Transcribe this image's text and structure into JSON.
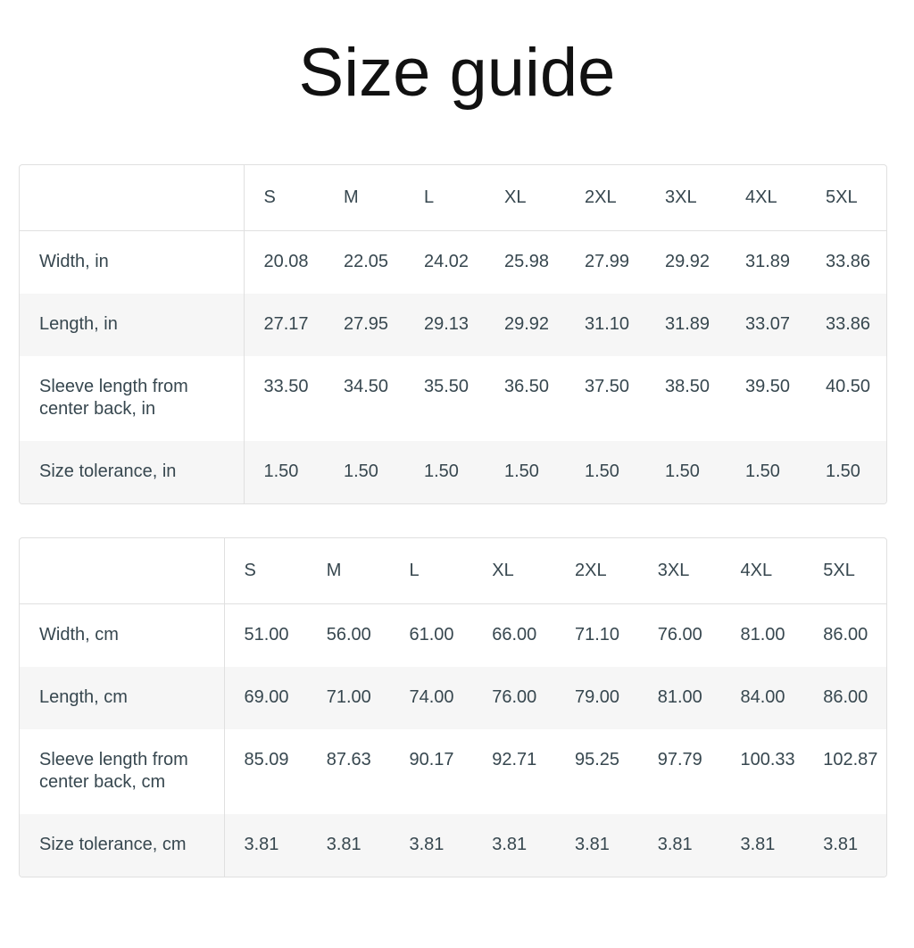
{
  "title": "Size guide",
  "colors": {
    "background": "#ffffff",
    "title": "#111111",
    "text": "#37474F",
    "border": "#e0e0e0",
    "stripe": "#f6f6f6"
  },
  "tables": [
    {
      "columns": [
        "S",
        "M",
        "L",
        "XL",
        "2XL",
        "3XL",
        "4XL",
        "5XL"
      ],
      "rows": [
        {
          "label": "Width, in",
          "values": [
            "20.08",
            "22.05",
            "24.02",
            "25.98",
            "27.99",
            "29.92",
            "31.89",
            "33.86"
          ]
        },
        {
          "label": "Length, in",
          "values": [
            "27.17",
            "27.95",
            "29.13",
            "29.92",
            "31.10",
            "31.89",
            "33.07",
            "33.86"
          ]
        },
        {
          "label": "Sleeve length from center back, in",
          "values": [
            "33.50",
            "34.50",
            "35.50",
            "36.50",
            "37.50",
            "38.50",
            "39.50",
            "40.50"
          ]
        },
        {
          "label": "Size tolerance, in",
          "values": [
            "1.50",
            "1.50",
            "1.50",
            "1.50",
            "1.50",
            "1.50",
            "1.50",
            "1.50"
          ]
        }
      ]
    },
    {
      "columns": [
        "S",
        "M",
        "L",
        "XL",
        "2XL",
        "3XL",
        "4XL",
        "5XL"
      ],
      "rows": [
        {
          "label": "Width, cm",
          "values": [
            "51.00",
            "56.00",
            "61.00",
            "66.00",
            "71.10",
            "76.00",
            "81.00",
            "86.00"
          ]
        },
        {
          "label": "Length, cm",
          "values": [
            "69.00",
            "71.00",
            "74.00",
            "76.00",
            "79.00",
            "81.00",
            "84.00",
            "86.00"
          ]
        },
        {
          "label": "Sleeve length from center back, cm",
          "values": [
            "85.09",
            "87.63",
            "90.17",
            "92.71",
            "95.25",
            "97.79",
            "100.33",
            "102.87"
          ]
        },
        {
          "label": "Size tolerance, cm",
          "values": [
            "3.81",
            "3.81",
            "3.81",
            "3.81",
            "3.81",
            "3.81",
            "3.81",
            "3.81"
          ]
        }
      ]
    }
  ]
}
